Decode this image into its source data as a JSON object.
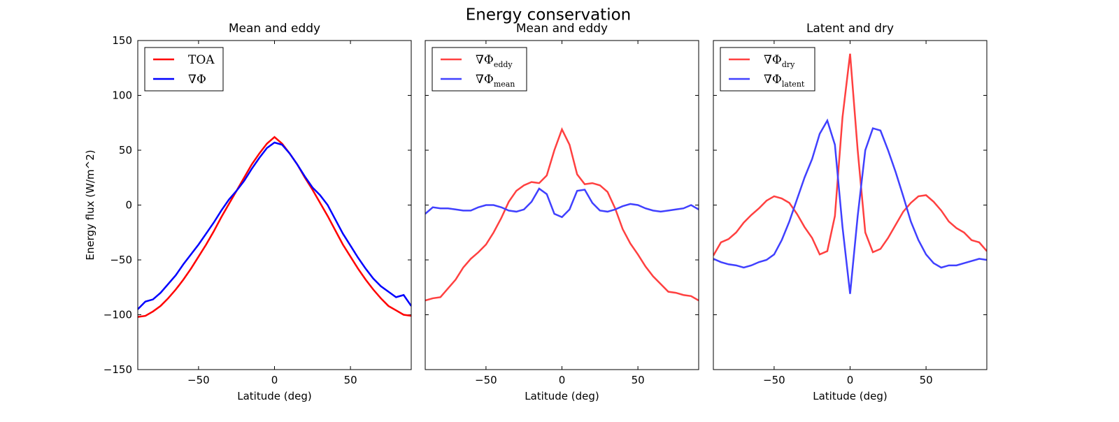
{
  "title": "Energy conservation",
  "chart_data": [
    {
      "type": "line",
      "title": "Mean and eddy",
      "xlabel": "Latitude (deg)",
      "ylabel": "Energy flux (W/m^2)",
      "xlim": [
        -90,
        90
      ],
      "ylim": [
        -150,
        150
      ],
      "xticks": [
        {
          "value": -50,
          "label": "−50"
        },
        0,
        50
      ],
      "yticks": [
        {
          "value": -150,
          "label": "−150"
        },
        {
          "value": -100,
          "label": "−100"
        },
        {
          "value": -50,
          "label": "−50"
        },
        0,
        50,
        100,
        150
      ],
      "ytick_labels": true,
      "legend": "upper left",
      "x": [
        -90,
        -85,
        -80,
        -75,
        -70,
        -65,
        -60,
        -55,
        -50,
        -45,
        -40,
        -35,
        -30,
        -25,
        -20,
        -15,
        -10,
        -5,
        0,
        5,
        10,
        15,
        20,
        25,
        30,
        35,
        40,
        45,
        50,
        55,
        60,
        65,
        70,
        75,
        80,
        85,
        90
      ],
      "series": [
        {
          "name": "TOA",
          "color": "#ff0000",
          "values": [
            -102,
            -101,
            -97,
            -92,
            -85,
            -77,
            -68,
            -58,
            -47,
            -36,
            -24,
            -11,
            1,
            13,
            25,
            37,
            47,
            56,
            62,
            56,
            47,
            37,
            25,
            14,
            2,
            -10,
            -23,
            -36,
            -47,
            -58,
            -68,
            -77,
            -85,
            -92,
            -96,
            -100,
            -101
          ]
        },
        {
          "name": "∇Φ",
          "color": "#0000ff",
          "values": [
            -95,
            -88,
            -86,
            -80,
            -72,
            -64,
            -54,
            -45,
            -36,
            -26,
            -16,
            -5,
            5,
            13,
            22,
            33,
            43,
            52,
            57,
            55,
            47,
            37,
            26,
            16,
            9,
            0,
            -13,
            -26,
            -37,
            -48,
            -58,
            -67,
            -74,
            -79,
            -84,
            -82,
            -92
          ]
        }
      ]
    },
    {
      "type": "line",
      "title": "Mean and eddy",
      "xlabel": "Latitude (deg)",
      "xlim": [
        -90,
        90
      ],
      "ylim": [
        -150,
        150
      ],
      "xticks": [
        {
          "value": -50,
          "label": "−50"
        },
        0,
        50
      ],
      "yticks": [
        -150,
        -100,
        -50,
        0,
        50,
        100,
        150
      ],
      "ytick_labels": false,
      "legend": "upper left",
      "x": [
        -90,
        -85,
        -80,
        -75,
        -70,
        -65,
        -60,
        -55,
        -50,
        -45,
        -40,
        -35,
        -30,
        -25,
        -20,
        -15,
        -10,
        -5,
        0,
        5,
        10,
        15,
        20,
        25,
        30,
        35,
        40,
        45,
        50,
        55,
        60,
        65,
        70,
        75,
        80,
        85,
        90
      ],
      "series": [
        {
          "name": "∇Φ",
          "subscript": "eddy",
          "color": "#ff4040",
          "values": [
            -87,
            -85,
            -84,
            -76,
            -68,
            -57,
            -49,
            -43,
            -36,
            -25,
            -12,
            3,
            13,
            18,
            21,
            20,
            27,
            50,
            69,
            55,
            28,
            19,
            20,
            18,
            12,
            -3,
            -22,
            -35,
            -45,
            -56,
            -65,
            -72,
            -79,
            -80,
            -82,
            -83,
            -87
          ]
        },
        {
          "name": "∇Φ",
          "subscript": "mean",
          "color": "#4040ff",
          "values": [
            -8,
            -2,
            -3,
            -3,
            -4,
            -5,
            -5,
            -2,
            0,
            0,
            -2,
            -5,
            -6,
            -4,
            3,
            15,
            10,
            -8,
            -11,
            -4,
            13,
            14,
            2,
            -5,
            -6,
            -4,
            -1,
            1,
            0,
            -3,
            -5,
            -6,
            -5,
            -4,
            -3,
            0,
            -4
          ]
        }
      ]
    },
    {
      "type": "line",
      "title": "Latent and dry",
      "xlabel": "Latitude (deg)",
      "xlim": [
        -90,
        90
      ],
      "ylim": [
        -150,
        150
      ],
      "xticks": [
        {
          "value": -50,
          "label": "−50"
        },
        0,
        50
      ],
      "yticks": [
        -150,
        -100,
        -50,
        0,
        50,
        100,
        150
      ],
      "ytick_labels": false,
      "legend": "upper left",
      "x": [
        -90,
        -85,
        -80,
        -75,
        -70,
        -65,
        -60,
        -55,
        -50,
        -45,
        -40,
        -35,
        -30,
        -25,
        -20,
        -15,
        -10,
        -5,
        0,
        5,
        10,
        15,
        20,
        25,
        30,
        35,
        40,
        45,
        50,
        55,
        60,
        65,
        70,
        75,
        80,
        85,
        90
      ],
      "series": [
        {
          "name": "∇Φ",
          "subscript": "dry",
          "color": "#ff4040",
          "values": [
            -46,
            -34,
            -31,
            -25,
            -16,
            -9,
            -3,
            4,
            8,
            6,
            2,
            -8,
            -20,
            -30,
            -45,
            -42,
            -10,
            80,
            138,
            50,
            -25,
            -43,
            -40,
            -30,
            -18,
            -6,
            2,
            8,
            9,
            3,
            -5,
            -15,
            -21,
            -25,
            -32,
            -34,
            -42
          ]
        },
        {
          "name": "∇Φ",
          "subscript": "latent",
          "color": "#4040ff",
          "values": [
            -49,
            -52,
            -54,
            -55,
            -57,
            -55,
            -52,
            -50,
            -45,
            -32,
            -15,
            5,
            25,
            42,
            65,
            77,
            55,
            -20,
            -81,
            -10,
            50,
            70,
            68,
            50,
            30,
            8,
            -15,
            -32,
            -45,
            -53,
            -57,
            -55,
            -55,
            -53,
            -51,
            -49,
            -50
          ]
        }
      ]
    }
  ]
}
